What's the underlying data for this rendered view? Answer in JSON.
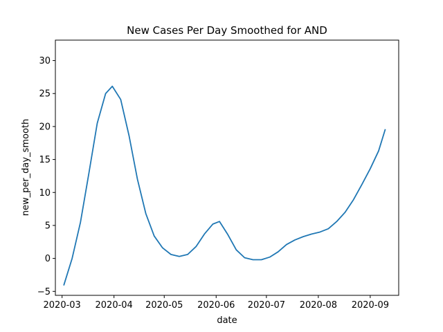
{
  "chart_data": {
    "type": "line",
    "title": "New Cases Per Day Smoothed for AND",
    "xlabel": "date",
    "ylabel": "new_per_day_smooth",
    "x_ticks": [
      "2020-03",
      "2020-04",
      "2020-05",
      "2020-06",
      "2020-07",
      "2020-08",
      "2020-09"
    ],
    "y_ticks": [
      -5,
      0,
      5,
      10,
      15,
      20,
      25,
      30
    ],
    "xlim": [
      "2020-02-26",
      "2020-09-18"
    ],
    "ylim": [
      -5.6,
      33.1
    ],
    "grid": false,
    "line_color": "#1f77b4",
    "series": [
      {
        "x": [
          "2020-03-02",
          "2020-03-07",
          "2020-03-12",
          "2020-03-17",
          "2020-03-22",
          "2020-03-27",
          "2020-03-31",
          "2020-04-05",
          "2020-04-10",
          "2020-04-15",
          "2020-04-20",
          "2020-04-25",
          "2020-04-30",
          "2020-05-05",
          "2020-05-10",
          "2020-05-15",
          "2020-05-20",
          "2020-05-25",
          "2020-05-30",
          "2020-06-03",
          "2020-06-08",
          "2020-06-13",
          "2020-06-18",
          "2020-06-23",
          "2020-06-28",
          "2020-07-03",
          "2020-07-08",
          "2020-07-13",
          "2020-07-18",
          "2020-07-23",
          "2020-07-28",
          "2020-08-02",
          "2020-08-07",
          "2020-08-12",
          "2020-08-17",
          "2020-08-22",
          "2020-08-27",
          "2020-09-01",
          "2020-09-06",
          "2020-09-10"
        ],
        "y": [
          -4.1,
          0.0,
          5.5,
          12.9,
          20.5,
          25.0,
          26.1,
          24.1,
          18.6,
          12.0,
          6.8,
          3.4,
          1.6,
          0.6,
          0.3,
          0.6,
          1.8,
          3.7,
          5.2,
          5.6,
          3.6,
          1.3,
          0.1,
          -0.2,
          -0.2,
          0.2,
          1.0,
          2.1,
          2.8,
          3.3,
          3.7,
          4.0,
          4.5,
          5.6,
          7.0,
          8.9,
          11.2,
          13.6,
          16.3,
          19.6
        ]
      }
    ]
  }
}
